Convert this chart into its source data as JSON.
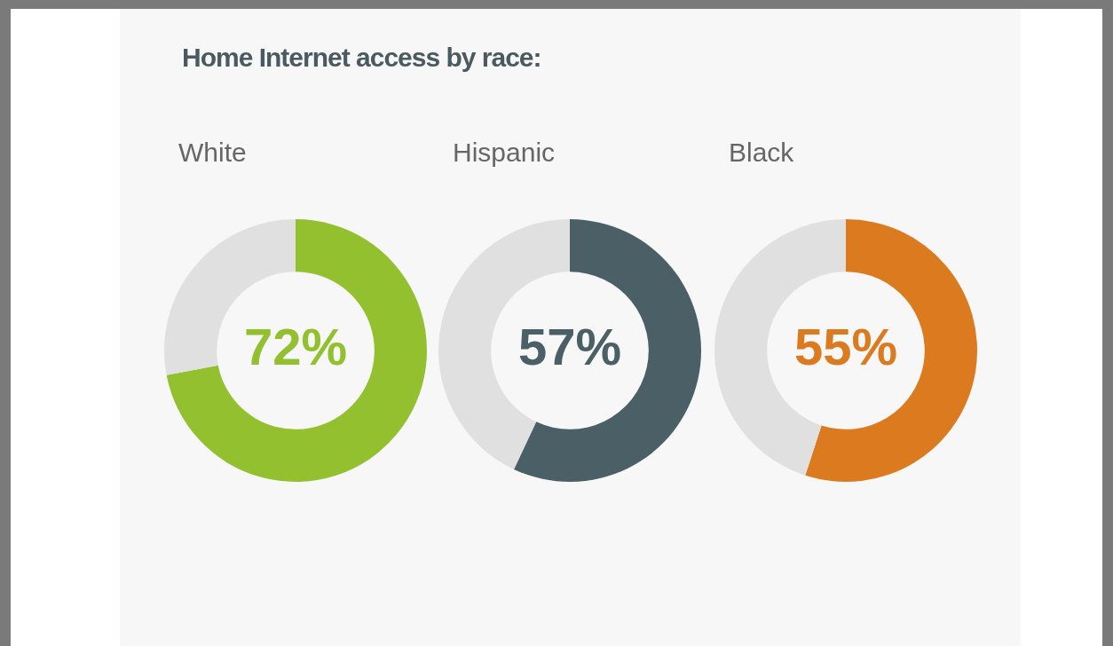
{
  "chart_data": [
    {
      "type": "other",
      "title": "Home Internet access by race:"
    },
    {
      "type": "donut",
      "title": "White",
      "categories": [
        null,
        null
      ],
      "values": [
        72,
        28
      ],
      "colors": [
        "#93c02f",
        "#e0e0e0"
      ],
      "annotations": [
        "72%"
      ]
    },
    {
      "type": "donut",
      "title": "Hispanic",
      "categories": [
        null,
        null
      ],
      "values": [
        57,
        43
      ],
      "colors": [
        "#4b5f66",
        "#e0e0e0"
      ],
      "annotations": [
        "57%"
      ]
    },
    {
      "type": "donut",
      "title": "Black",
      "categories": [
        null,
        null
      ],
      "values": [
        55,
        45
      ],
      "colors": [
        "#db7a1e",
        "#e0e0e0"
      ],
      "annotations": [
        "55%"
      ]
    }
  ]
}
